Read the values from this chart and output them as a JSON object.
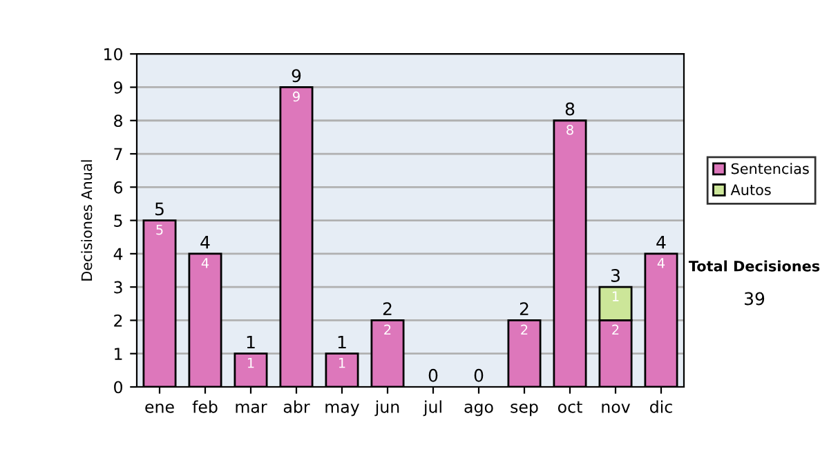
{
  "chart_data": {
    "type": "bar",
    "stacked": true,
    "ylabel": "Decisiones Anual",
    "categories": [
      "ene",
      "feb",
      "mar",
      "abr",
      "may",
      "jun",
      "jul",
      "ago",
      "sep",
      "oct",
      "nov",
      "dic"
    ],
    "series": [
      {
        "name": "Sentencias",
        "color": "#dd77bb",
        "values": [
          5,
          4,
          1,
          9,
          1,
          2,
          0,
          0,
          2,
          8,
          2,
          4
        ],
        "value_labels": [
          "5",
          "4",
          "1",
          "9",
          "1",
          "2",
          null,
          null,
          "2",
          "8",
          "2",
          "4"
        ]
      },
      {
        "name": "Autos",
        "color": "#cce699",
        "values": [
          0,
          0,
          0,
          0,
          0,
          0,
          0,
          0,
          0,
          0,
          1,
          0
        ],
        "value_labels": [
          null,
          null,
          null,
          null,
          null,
          null,
          null,
          null,
          null,
          null,
          "1",
          null
        ]
      }
    ],
    "totals": [
      "5",
      "4",
      "1",
      "9",
      "1",
      "2",
      "0",
      "0",
      "2",
      "8",
      "3",
      "4"
    ],
    "ylim": [
      0,
      10
    ],
    "yticks": [
      0,
      1,
      2,
      3,
      4,
      5,
      6,
      7,
      8,
      9,
      10
    ],
    "grid": "y",
    "legend": "right",
    "annotations": [
      "Total Decisiones",
      "39"
    ]
  }
}
